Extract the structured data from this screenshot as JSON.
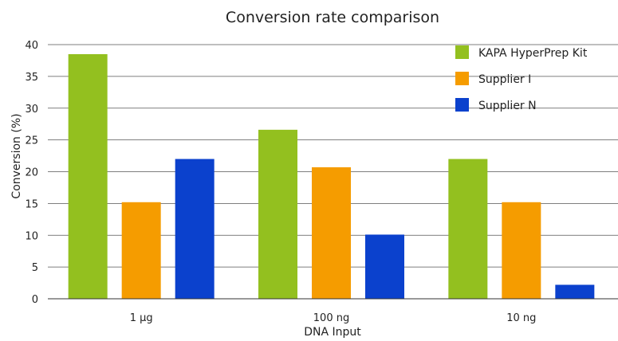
{
  "chart_data": {
    "type": "bar",
    "title": "Conversion rate comparison",
    "xlabel": "DNA Input",
    "ylabel": "Conversion (%)",
    "categories": [
      "1 µg",
      "100 ng",
      "10 ng"
    ],
    "series": [
      {
        "name": "KAPA HyperPrep Kit",
        "color": "#93c01f",
        "values": [
          38.5,
          26.6,
          22.0
        ]
      },
      {
        "name": "Supplier I",
        "color": "#f59c00",
        "values": [
          15.2,
          20.7,
          15.2
        ]
      },
      {
        "name": "Supplier N",
        "color": "#0b41cd",
        "values": [
          22.0,
          10.1,
          2.2
        ]
      }
    ],
    "ylim": [
      0,
      40
    ],
    "yticks": [
      0,
      5,
      10,
      15,
      20,
      25,
      30,
      35,
      40
    ],
    "grid": true,
    "legend_position": "top-right"
  }
}
